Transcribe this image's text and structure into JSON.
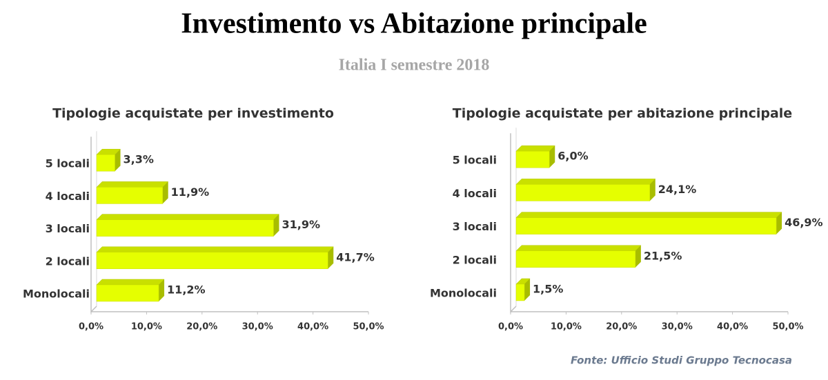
{
  "title": "Investimento vs Abitazione principale",
  "subtitle": "Italia I semestre 2018",
  "source": "Fonte: Ufficio Studi Gruppo Tecnocasa",
  "chart_data": [
    {
      "type": "bar",
      "orientation": "horizontal",
      "title": "Tipologie acquistate per investimento",
      "categories": [
        "Monolocali",
        "2 locali",
        "3 locali",
        "4 locali",
        "5 locali"
      ],
      "values": [
        11.2,
        41.7,
        31.9,
        11.9,
        3.3
      ],
      "value_labels": [
        "11,2%",
        "41,7%",
        "31,9%",
        "11,9%",
        "3,3%"
      ],
      "color": "#e5ff00",
      "xlim": [
        0,
        50
      ],
      "xticks": [
        {
          "value": 0,
          "label": "0,0%"
        },
        {
          "value": 10,
          "label": "10,0%"
        },
        {
          "value": 20,
          "label": "20,0%"
        },
        {
          "value": 30,
          "label": "30,0%"
        },
        {
          "value": 40,
          "label": "40,0%"
        },
        {
          "value": 50,
          "label": "50,0%"
        }
      ],
      "grid": false
    },
    {
      "type": "bar",
      "orientation": "horizontal",
      "title": "Tipologie acquistate per abitazione principale",
      "categories": [
        "Monolocali",
        "2 locali",
        "3 locali",
        "4 locali",
        "5 locali"
      ],
      "values": [
        1.5,
        21.5,
        46.9,
        24.1,
        6.0
      ],
      "value_labels": [
        "1,5%",
        "21,5%",
        "46,9%",
        "24,1%",
        "6,0%"
      ],
      "color": "#e5ff00",
      "xlim": [
        0,
        50
      ],
      "xticks": [
        {
          "value": 0,
          "label": "0,0%"
        },
        {
          "value": 10,
          "label": "10,0%"
        },
        {
          "value": 20,
          "label": "20,0%"
        },
        {
          "value": 30,
          "label": "30,0%"
        },
        {
          "value": 40,
          "label": "40,0%"
        },
        {
          "value": 50,
          "label": "50,0%"
        }
      ],
      "grid": false
    }
  ]
}
